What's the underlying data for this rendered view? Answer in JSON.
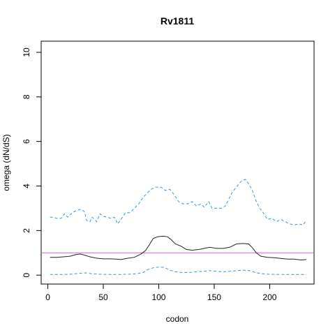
{
  "chart_data": {
    "type": "line",
    "title": "Rv1811",
    "xlabel": "codon",
    "ylabel": "omega (dN/dS)",
    "xlim": [
      -6,
      240
    ],
    "ylim": [
      -0.4,
      10.5
    ],
    "xticks": [
      0,
      50,
      100,
      150,
      200
    ],
    "yticks": [
      0,
      2,
      4,
      6,
      8,
      10
    ],
    "reference_line": {
      "y": 1,
      "color": "#cc66cc"
    },
    "series": [
      {
        "role": "upper",
        "color": "#3399dd",
        "dashed": true,
        "points": [
          [
            2,
            2.6
          ],
          [
            5,
            2.6
          ],
          [
            8,
            2.55
          ],
          [
            12,
            2.55
          ],
          [
            15,
            2.75
          ],
          [
            18,
            2.6
          ],
          [
            22,
            2.8
          ],
          [
            26,
            2.9
          ],
          [
            30,
            2.95
          ],
          [
            33,
            2.85
          ],
          [
            35,
            2.45
          ],
          [
            38,
            2.4
          ],
          [
            40,
            2.6
          ],
          [
            44,
            2.4
          ],
          [
            47,
            2.75
          ],
          [
            50,
            2.65
          ],
          [
            53,
            2.6
          ],
          [
            57,
            2.55
          ],
          [
            60,
            2.6
          ],
          [
            63,
            2.3
          ],
          [
            66,
            2.5
          ],
          [
            70,
            2.8
          ],
          [
            74,
            2.8
          ],
          [
            78,
            3.0
          ],
          [
            82,
            3.2
          ],
          [
            86,
            3.5
          ],
          [
            90,
            3.7
          ],
          [
            93,
            3.85
          ],
          [
            97,
            3.95
          ],
          [
            102,
            3.95
          ],
          [
            106,
            3.8
          ],
          [
            110,
            3.85
          ],
          [
            114,
            3.6
          ],
          [
            118,
            3.3
          ],
          [
            122,
            3.2
          ],
          [
            126,
            3.2
          ],
          [
            130,
            3.3
          ],
          [
            134,
            3.1
          ],
          [
            138,
            3.2
          ],
          [
            141,
            3.05
          ],
          [
            145,
            3.3
          ],
          [
            148,
            3.0
          ],
          [
            152,
            3.0
          ],
          [
            156,
            3.0
          ],
          [
            160,
            3.1
          ],
          [
            163,
            3.4
          ],
          [
            166,
            3.7
          ],
          [
            170,
            3.95
          ],
          [
            174,
            4.2
          ],
          [
            178,
            4.3
          ],
          [
            181,
            4.1
          ],
          [
            184,
            3.85
          ],
          [
            188,
            3.3
          ],
          [
            191,
            3.0
          ],
          [
            194,
            2.8
          ],
          [
            198,
            2.5
          ],
          [
            202,
            2.55
          ],
          [
            206,
            2.4
          ],
          [
            210,
            2.5
          ],
          [
            214,
            2.4
          ],
          [
            218,
            2.3
          ],
          [
            222,
            2.25
          ],
          [
            226,
            2.3
          ],
          [
            230,
            2.25
          ],
          [
            233,
            2.45
          ]
        ]
      },
      {
        "role": "estimate",
        "color": "#222222",
        "dashed": false,
        "points": [
          [
            2,
            0.8
          ],
          [
            8,
            0.8
          ],
          [
            14,
            0.82
          ],
          [
            20,
            0.85
          ],
          [
            25,
            0.92
          ],
          [
            29,
            0.95
          ],
          [
            33,
            0.9
          ],
          [
            38,
            0.82
          ],
          [
            44,
            0.76
          ],
          [
            50,
            0.73
          ],
          [
            56,
            0.73
          ],
          [
            62,
            0.72
          ],
          [
            66,
            0.7
          ],
          [
            72,
            0.76
          ],
          [
            78,
            0.8
          ],
          [
            84,
            0.95
          ],
          [
            88,
            1.1
          ],
          [
            92,
            1.4
          ],
          [
            95,
            1.65
          ],
          [
            99,
            1.72
          ],
          [
            104,
            1.75
          ],
          [
            108,
            1.72
          ],
          [
            111,
            1.6
          ],
          [
            115,
            1.4
          ],
          [
            120,
            1.3
          ],
          [
            125,
            1.15
          ],
          [
            130,
            1.12
          ],
          [
            136,
            1.15
          ],
          [
            141,
            1.2
          ],
          [
            146,
            1.25
          ],
          [
            152,
            1.2
          ],
          [
            158,
            1.2
          ],
          [
            164,
            1.25
          ],
          [
            170,
            1.4
          ],
          [
            176,
            1.42
          ],
          [
            181,
            1.4
          ],
          [
            184,
            1.25
          ],
          [
            188,
            1.0
          ],
          [
            192,
            0.85
          ],
          [
            198,
            0.8
          ],
          [
            204,
            0.78
          ],
          [
            210,
            0.75
          ],
          [
            216,
            0.72
          ],
          [
            222,
            0.72
          ],
          [
            228,
            0.68
          ],
          [
            233,
            0.7
          ]
        ]
      },
      {
        "role": "lower",
        "color": "#3399dd",
        "dashed": true,
        "points": [
          [
            2,
            0.03
          ],
          [
            10,
            0.03
          ],
          [
            20,
            0.04
          ],
          [
            28,
            0.08
          ],
          [
            34,
            0.1
          ],
          [
            40,
            0.06
          ],
          [
            48,
            0.04
          ],
          [
            56,
            0.03
          ],
          [
            64,
            0.03
          ],
          [
            72,
            0.04
          ],
          [
            80,
            0.06
          ],
          [
            86,
            0.12
          ],
          [
            90,
            0.25
          ],
          [
            95,
            0.33
          ],
          [
            100,
            0.36
          ],
          [
            105,
            0.35
          ],
          [
            110,
            0.22
          ],
          [
            115,
            0.15
          ],
          [
            120,
            0.12
          ],
          [
            128,
            0.12
          ],
          [
            134,
            0.15
          ],
          [
            140,
            0.17
          ],
          [
            146,
            0.2
          ],
          [
            152,
            0.17
          ],
          [
            158,
            0.15
          ],
          [
            164,
            0.17
          ],
          [
            170,
            0.2
          ],
          [
            176,
            0.22
          ],
          [
            182,
            0.2
          ],
          [
            188,
            0.1
          ],
          [
            194,
            0.06
          ],
          [
            200,
            0.04
          ],
          [
            210,
            0.03
          ],
          [
            220,
            0.03
          ],
          [
            233,
            0.03
          ]
        ]
      }
    ]
  }
}
